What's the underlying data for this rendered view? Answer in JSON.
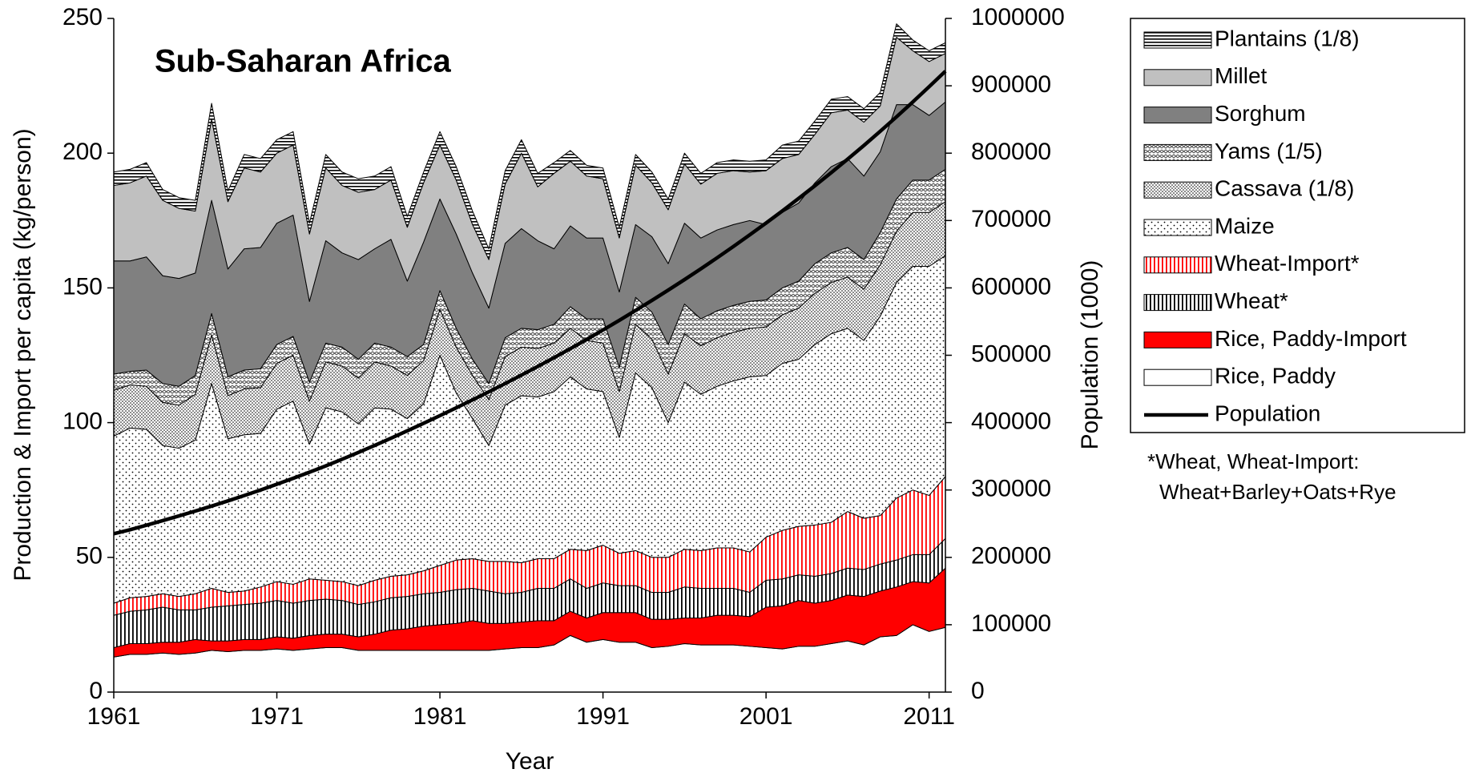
{
  "chart_data": {
    "type": "area",
    "title": "Sub-Saharan Africa",
    "x_label": "Year",
    "y_label": "Production & Import per capita (kg/person)",
    "y2_label": "Population (1000)",
    "annotations": [
      "*Wheat, Wheat-Import:",
      "Wheat+Barley+Oats+Rye"
    ],
    "x": [
      1961,
      1962,
      1963,
      1964,
      1965,
      1966,
      1967,
      1968,
      1969,
      1970,
      1971,
      1972,
      1973,
      1974,
      1975,
      1976,
      1977,
      1978,
      1979,
      1980,
      1981,
      1982,
      1983,
      1984,
      1985,
      1986,
      1987,
      1988,
      1989,
      1990,
      1991,
      1992,
      1993,
      1994,
      1995,
      1996,
      1997,
      1998,
      1999,
      2000,
      2001,
      2002,
      2003,
      2004,
      2005,
      2006,
      2007,
      2008,
      2009,
      2010,
      2011,
      2012
    ],
    "xlim": [
      1961,
      2012
    ],
    "xticks": [
      1961,
      1971,
      1981,
      1991,
      2001,
      2011
    ],
    "ylim": [
      0,
      250
    ],
    "yticks": [
      0,
      50,
      100,
      150,
      200,
      250
    ],
    "y2lim": [
      0,
      1000000
    ],
    "y2ticks": [
      0,
      100000,
      200000,
      300000,
      400000,
      500000,
      600000,
      700000,
      800000,
      900000,
      1000000
    ],
    "stacked": true,
    "series": [
      {
        "name": "Rice, Paddy",
        "color": "#ffffff",
        "values": [
          13,
          14,
          14,
          14.5,
          14,
          14.5,
          15.5,
          15,
          15.5,
          15.5,
          16,
          15.5,
          16,
          16.5,
          16.5,
          15.5,
          15.5,
          15.5,
          15.5,
          15.5,
          15.5,
          15.5,
          15.5,
          15.5,
          16,
          16.5,
          16.5,
          17.5,
          21,
          18.5,
          19.5,
          18.5,
          18.5,
          16.5,
          17,
          18,
          17.5,
          17.5,
          17.5,
          17,
          16.5,
          16,
          17,
          17,
          18,
          19,
          17.5,
          20.5,
          21,
          25,
          22.5,
          24
        ]
      },
      {
        "name": "Rice, Paddy-Import",
        "color": "#ff0000",
        "values": [
          3.5,
          4,
          4,
          4,
          4.5,
          5,
          3.5,
          4,
          4,
          4,
          4.5,
          4.5,
          5,
          5,
          5,
          5,
          6,
          7.5,
          8,
          9,
          9.5,
          10,
          11,
          10,
          9.5,
          9.5,
          10,
          9,
          9,
          9,
          10,
          11,
          11,
          10.5,
          10,
          9.5,
          10,
          11,
          11,
          11,
          15,
          16,
          17,
          16,
          16,
          17,
          18,
          17,
          18,
          16,
          18,
          22
        ]
      },
      {
        "name": "Wheat*",
        "color": "#000000",
        "pattern": "vlines",
        "values": [
          12,
          12,
          12.5,
          13,
          12,
          11,
          12.5,
          13,
          13,
          13.5,
          13.5,
          13,
          13,
          13,
          12.5,
          12,
          12,
          12,
          12,
          12,
          12,
          12.5,
          12,
          12,
          11,
          11,
          12,
          12,
          12,
          11,
          11,
          10,
          10,
          10,
          10,
          11.5,
          11,
          10,
          10,
          9,
          10,
          10,
          9.5,
          10,
          10,
          10,
          10,
          10,
          10,
          10,
          10.5,
          11
        ]
      },
      {
        "name": "Wheat-Import*",
        "color": "#ff0000",
        "pattern": "vlines",
        "values": [
          4.5,
          5,
          5,
          5,
          5,
          6,
          7,
          5,
          5,
          6,
          7,
          7,
          8,
          7,
          7,
          7,
          8,
          8,
          8,
          8.5,
          10,
          11,
          11,
          11,
          12,
          11,
          11,
          11,
          11,
          14,
          14,
          12,
          13,
          13,
          13,
          14,
          14,
          15,
          15,
          15,
          16,
          18,
          18,
          19,
          19,
          21,
          19,
          18,
          23,
          24,
          22,
          23
        ]
      },
      {
        "name": "Maize",
        "color": "#000000",
        "pattern": "dots-sparse",
        "values": [
          62,
          63,
          62,
          55,
          55,
          57,
          76,
          57,
          58,
          57,
          64,
          68,
          50,
          64,
          63,
          60,
          64,
          62,
          58,
          62,
          78,
          62,
          52,
          43,
          58,
          62,
          60,
          62,
          64,
          60,
          57,
          43,
          66,
          63,
          50,
          62,
          58,
          60,
          62,
          65,
          60,
          62,
          62,
          67,
          70,
          68,
          66,
          74,
          80,
          83,
          85,
          82
        ]
      },
      {
        "name": "Cassava (1/8)",
        "color": "#000000",
        "pattern": "dots-dense",
        "values": [
          17,
          16,
          16,
          16,
          16,
          17,
          18,
          16,
          17,
          17,
          17,
          17,
          16,
          17,
          17,
          17,
          17,
          16,
          16,
          16,
          17,
          17,
          16,
          17,
          18,
          18,
          18,
          18,
          18,
          18,
          18,
          17,
          18,
          18,
          18,
          18,
          18,
          18,
          18,
          18,
          18,
          18,
          19,
          19,
          19,
          19,
          19,
          19,
          19,
          20,
          20,
          20
        ]
      },
      {
        "name": "Yams (1/5)",
        "color": "#555555",
        "pattern": "waves",
        "values": [
          6,
          5,
          6,
          7,
          7,
          7,
          8,
          7,
          7,
          7,
          7,
          7,
          7,
          7,
          7,
          7,
          7,
          7,
          7,
          6,
          7,
          7,
          6,
          6,
          7,
          7,
          7,
          7,
          8,
          8,
          9,
          9,
          10,
          10,
          11,
          11,
          10,
          10,
          10,
          10,
          10,
          10,
          10,
          11,
          11,
          11,
          11,
          12,
          12,
          12,
          12,
          12
        ]
      },
      {
        "name": "Sorghum",
        "color": "#808080",
        "values": [
          42,
          41,
          42,
          40,
          40,
          38,
          42,
          40,
          45,
          45,
          45,
          45,
          30,
          38,
          35,
          37,
          35,
          40,
          28,
          38,
          34,
          35,
          32,
          28,
          35,
          37,
          33,
          28,
          30,
          30,
          30,
          28,
          27,
          28,
          30,
          30,
          30,
          30,
          30,
          30,
          28,
          28,
          29,
          30,
          32,
          33,
          31,
          30,
          35,
          28,
          24,
          25
        ]
      },
      {
        "name": "Millet",
        "color": "#c0c0c0",
        "values": [
          28,
          29,
          30,
          28,
          26,
          23,
          30,
          25,
          30,
          28,
          26,
          26,
          25,
          27,
          25,
          25,
          22,
          22,
          20,
          22,
          20,
          20,
          18,
          18,
          22,
          28,
          20,
          28,
          24,
          23,
          22,
          20,
          22,
          20,
          20,
          22,
          20,
          21,
          20,
          18,
          20,
          20,
          18,
          18,
          20,
          18,
          20,
          17,
          25,
          20,
          20,
          18
        ]
      },
      {
        "name": "Plantains (1/8)",
        "color": "#000000",
        "pattern": "hlines",
        "values": [
          5,
          5,
          5,
          4,
          4,
          4,
          6,
          4,
          5,
          5,
          5,
          5,
          4,
          5,
          5,
          5,
          5,
          5,
          4,
          4,
          5,
          5,
          5,
          4,
          5,
          5,
          5,
          4,
          4,
          4,
          4,
          4,
          4,
          4,
          4,
          4,
          4,
          4,
          4,
          4,
          4,
          5,
          5,
          5,
          5,
          5,
          5,
          5,
          5,
          4,
          4,
          4
        ]
      },
      {
        "name": "Population",
        "color": "#000000",
        "axis": "y2",
        "values": [
          235000,
          241000,
          247700,
          254500,
          261500,
          268700,
          276100,
          283800,
          291800,
          300000,
          308500,
          317300,
          326400,
          335800,
          345600,
          355700,
          366100,
          376800,
          387800,
          399000,
          410400,
          422000,
          433800,
          445800,
          458000,
          470500,
          483300,
          496400,
          509800,
          523500,
          537500,
          551800,
          566500,
          581400,
          596700,
          612300,
          628300,
          644700,
          661500,
          678700,
          696300,
          714300,
          732800,
          751700,
          771100,
          791000,
          811400,
          832400,
          853900,
          876000,
          898600,
          921700
        ]
      }
    ]
  }
}
